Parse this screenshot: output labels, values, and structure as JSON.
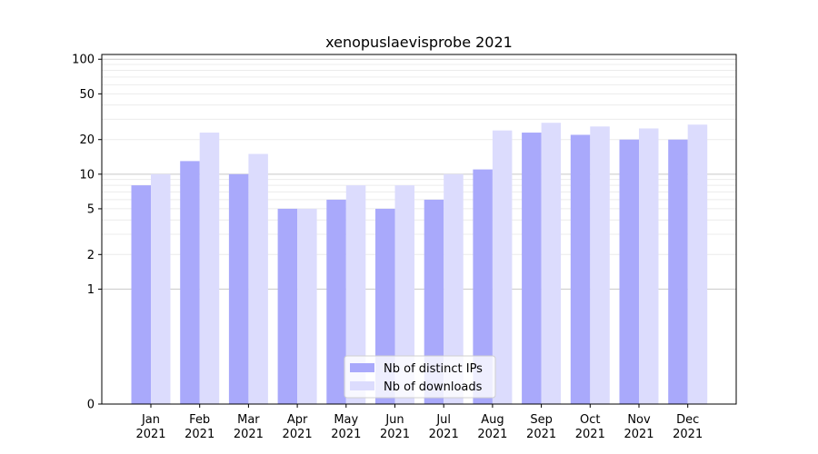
{
  "chart_data": {
    "type": "bar",
    "title": "xenopuslaevisprobe 2021",
    "xlabel": "",
    "ylabel": "",
    "yscale": "symlog",
    "ylim": [
      0,
      110
    ],
    "yticks": [
      0,
      1,
      2,
      5,
      10,
      20,
      50,
      100
    ],
    "grid": "horizontal",
    "legend_position": "bottom-center",
    "categories": [
      {
        "month": "Jan",
        "year": "2021"
      },
      {
        "month": "Feb",
        "year": "2021"
      },
      {
        "month": "Mar",
        "year": "2021"
      },
      {
        "month": "Apr",
        "year": "2021"
      },
      {
        "month": "May",
        "year": "2021"
      },
      {
        "month": "Jun",
        "year": "2021"
      },
      {
        "month": "Jul",
        "year": "2021"
      },
      {
        "month": "Aug",
        "year": "2021"
      },
      {
        "month": "Sep",
        "year": "2021"
      },
      {
        "month": "Oct",
        "year": "2021"
      },
      {
        "month": "Nov",
        "year": "2021"
      },
      {
        "month": "Dec",
        "year": "2021"
      }
    ],
    "series": [
      {
        "name": "Nb of distinct IPs",
        "color": "#a9a9fb",
        "values": [
          8,
          13,
          10,
          5,
          6,
          5,
          6,
          11,
          23,
          22,
          20,
          20
        ]
      },
      {
        "name": "Nb of downloads",
        "color": "#dcdcfd",
        "values": [
          10,
          23,
          15,
          5,
          8,
          8,
          10,
          24,
          28,
          26,
          25,
          27
        ]
      }
    ]
  }
}
